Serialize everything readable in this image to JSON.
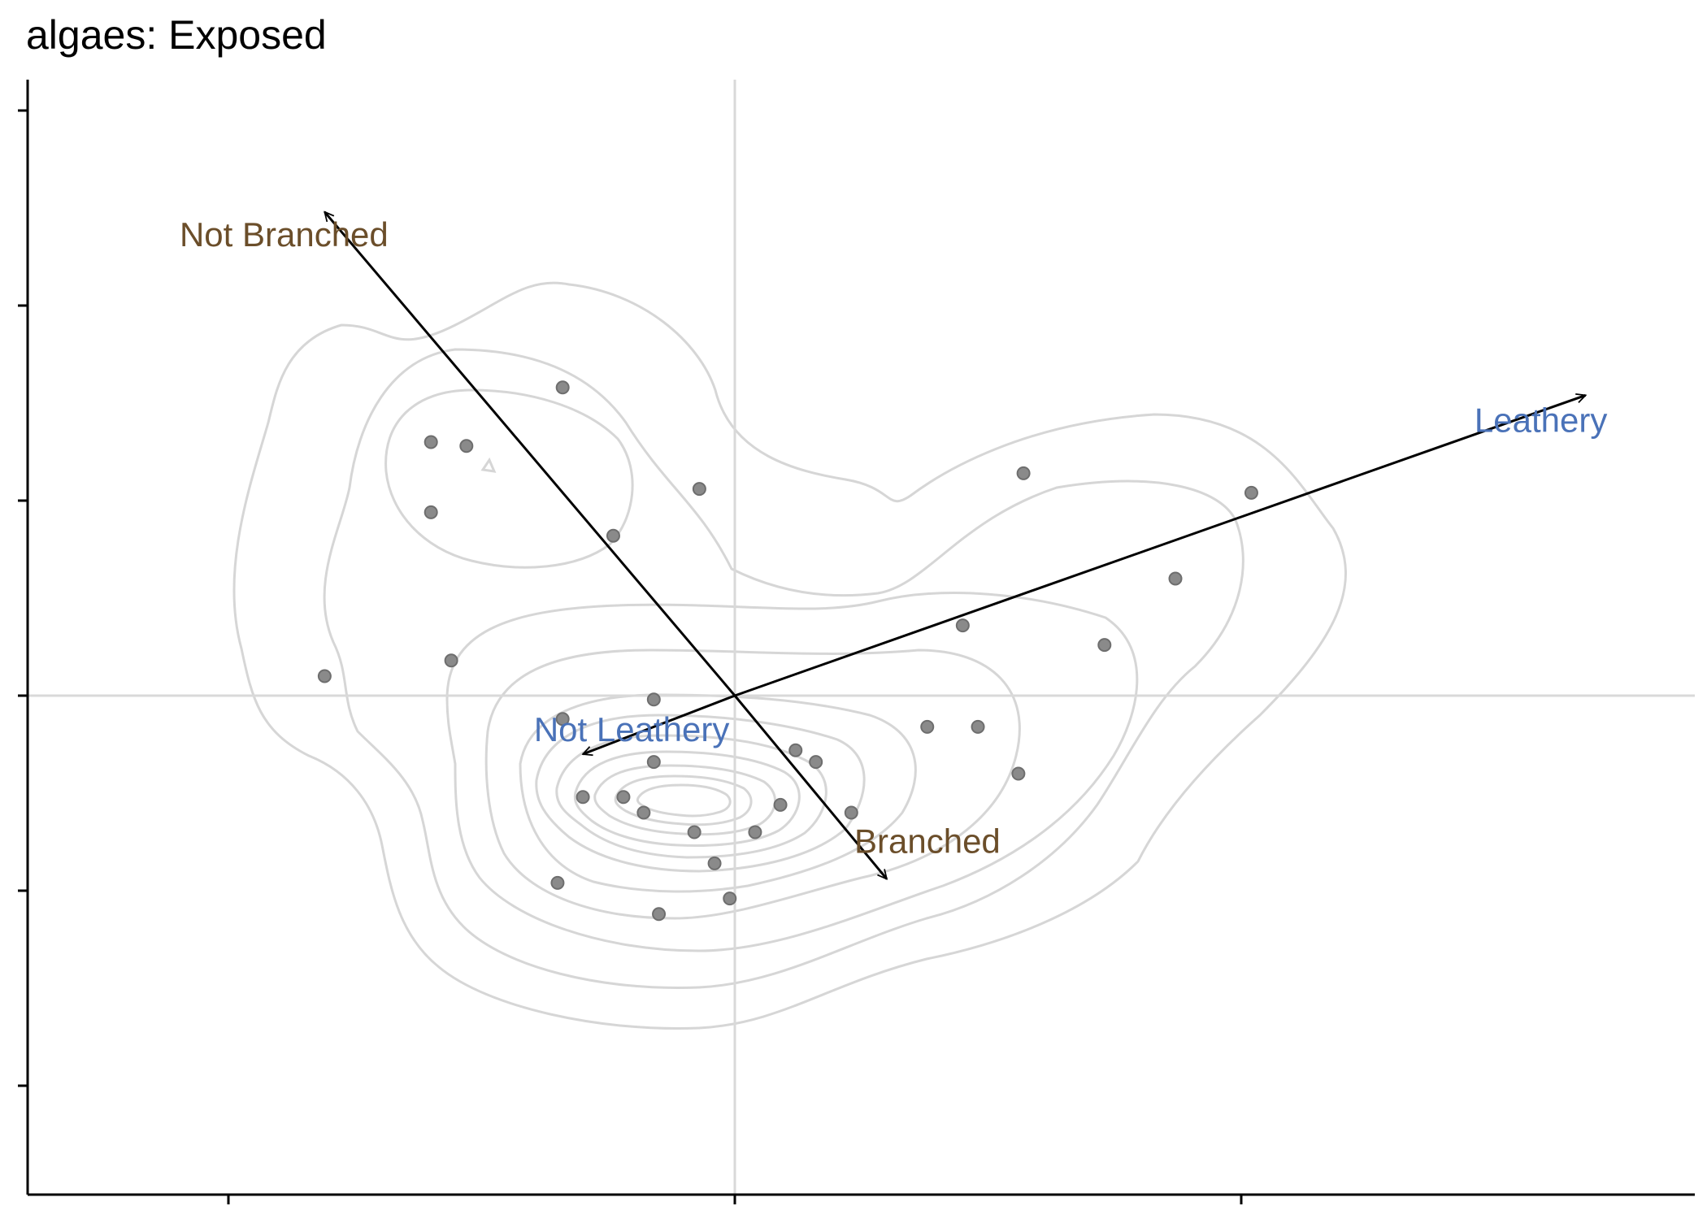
{
  "chart_data": {
    "type": "scatter",
    "title": "algaes: Exposed",
    "xlabel": "",
    "ylabel": "",
    "xlim": [
      -1.0,
      1.9
    ],
    "ylim": [
      -1.3,
      1.6
    ],
    "xticks": [
      -1,
      0,
      1
    ],
    "yticks": [
      -1,
      -0.5,
      0,
      0.5,
      1,
      1.5
    ],
    "grid": false,
    "reference_lines": {
      "x": 0,
      "y": 0
    },
    "colors": {
      "points": "#8a8a8a",
      "contours": "#d6d6d6",
      "arrows": "#000000",
      "branch_labels": "#6b4e2a",
      "leathery_labels": "#4a72b8"
    },
    "points": [
      {
        "x": -0.34,
        "y": 0.79
      },
      {
        "x": -0.6,
        "y": 0.65
      },
      {
        "x": -0.53,
        "y": 0.64
      },
      {
        "x": -0.6,
        "y": 0.47
      },
      {
        "x": -0.07,
        "y": 0.53
      },
      {
        "x": -0.24,
        "y": 0.41
      },
      {
        "x": 0.57,
        "y": 0.57
      },
      {
        "x": 1.02,
        "y": 0.52
      },
      {
        "x": 0.87,
        "y": 0.3
      },
      {
        "x": 0.45,
        "y": 0.18
      },
      {
        "x": 0.73,
        "y": 0.13
      },
      {
        "x": -0.81,
        "y": 0.05
      },
      {
        "x": -0.56,
        "y": 0.09
      },
      {
        "x": -0.16,
        "y": -0.01
      },
      {
        "x": -0.34,
        "y": -0.06
      },
      {
        "x": 0.38,
        "y": -0.08
      },
      {
        "x": 0.48,
        "y": -0.08
      },
      {
        "x": 0.12,
        "y": -0.14
      },
      {
        "x": 0.16,
        "y": -0.17
      },
      {
        "x": -0.16,
        "y": -0.17
      },
      {
        "x": 0.56,
        "y": -0.2
      },
      {
        "x": -0.3,
        "y": -0.26
      },
      {
        "x": -0.22,
        "y": -0.26
      },
      {
        "x": -0.18,
        "y": -0.3
      },
      {
        "x": 0.09,
        "y": -0.28
      },
      {
        "x": 0.23,
        "y": -0.3
      },
      {
        "x": -0.08,
        "y": -0.35
      },
      {
        "x": 0.04,
        "y": -0.35
      },
      {
        "x": -0.04,
        "y": -0.43
      },
      {
        "x": -0.35,
        "y": -0.48
      },
      {
        "x": -0.15,
        "y": -0.56
      },
      {
        "x": -0.01,
        "y": -0.52
      }
    ],
    "arrows": [
      {
        "label": "Not Branched",
        "x": -0.81,
        "y": 1.24,
        "group": "branch"
      },
      {
        "label": "Branched",
        "x": 0.3,
        "y": -0.47,
        "group": "branch"
      },
      {
        "label": "Leathery",
        "x": 1.68,
        "y": 0.77,
        "group": "leathery"
      },
      {
        "label": "Not Leathery",
        "x": -0.3,
        "y": -0.15,
        "group": "leathery"
      }
    ],
    "contour_levels": 12
  }
}
